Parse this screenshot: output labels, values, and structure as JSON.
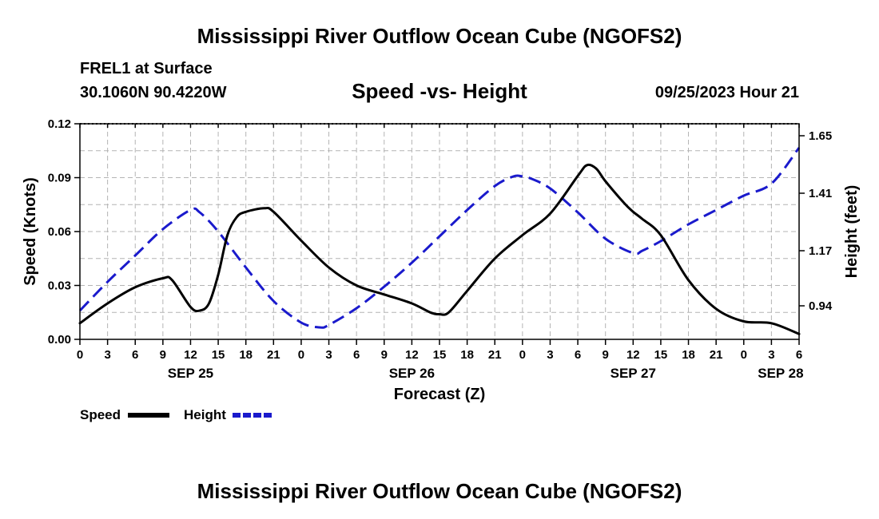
{
  "page": {
    "title": "Mississippi River Outflow Ocean Cube (NGOFS2)",
    "station": "FREL1 at Surface",
    "coords": "30.1060N  90.4220W",
    "datetime": "09/25/2023 Hour 21",
    "footer_title": "Mississippi River Outflow Ocean Cube (NGOFS2)"
  },
  "chart_data": {
    "type": "line",
    "title": "Speed -vs- Height",
    "xlabel": "Forecast (Z)",
    "ylabel_left": "Speed (Knots)",
    "ylabel_right": "Height (feet)",
    "x_range_hours": [
      0,
      78
    ],
    "y_left_range": [
      0,
      0.12
    ],
    "y_right_range": [
      0.8,
      1.7
    ],
    "grid": true,
    "x_tick_hours": [
      0,
      3,
      6,
      9,
      12,
      15,
      18,
      21,
      24,
      27,
      30,
      33,
      36,
      39,
      42,
      45,
      48,
      51,
      54,
      57,
      60,
      63,
      66,
      69,
      72,
      75,
      78
    ],
    "x_tick_labels": [
      "0",
      "3",
      "6",
      "9",
      "12",
      "15",
      "18",
      "21",
      "0",
      "3",
      "6",
      "9",
      "12",
      "15",
      "18",
      "21",
      "0",
      "3",
      "6",
      "9",
      "12",
      "15",
      "18",
      "21",
      "0",
      "3",
      "6"
    ],
    "date_labels": [
      {
        "label": "SEP 25",
        "hour": 12
      },
      {
        "label": "SEP 26",
        "hour": 36
      },
      {
        "label": "SEP 27",
        "hour": 60
      },
      {
        "label": "SEP 28",
        "hour": 76
      }
    ],
    "y_left_ticks": [
      {
        "value": 0,
        "label": "0.00"
      },
      {
        "value": 0.03,
        "label": "0.03"
      },
      {
        "value": 0.06,
        "label": "0.06"
      },
      {
        "value": 0.09,
        "label": "0.09"
      },
      {
        "value": 0.12,
        "label": "0.12"
      }
    ],
    "y_right_ticks": [
      {
        "value": 0.94,
        "label": "0.94"
      },
      {
        "value": 1.17,
        "label": "1.17"
      },
      {
        "value": 1.41,
        "label": "1.41"
      },
      {
        "value": 1.65,
        "label": "1.65"
      }
    ],
    "legend": {
      "placement": "bottom-left",
      "speed_label": "Speed",
      "height_label": "Height"
    },
    "series": [
      {
        "name": "Speed",
        "axis": "left",
        "color": "#000000",
        "style": "solid",
        "x": [
          0,
          3,
          6,
          9,
          10,
          12,
          13,
          14,
          15,
          16,
          17,
          18,
          20,
          21,
          24,
          27,
          30,
          33,
          36,
          38,
          39,
          40,
          42,
          45,
          48,
          51,
          54,
          55,
          56,
          57,
          59,
          60,
          61,
          63,
          66,
          69,
          72,
          75,
          78
        ],
        "y": [
          0.009,
          0.02,
          0.029,
          0.034,
          0.033,
          0.018,
          0.016,
          0.02,
          0.036,
          0.058,
          0.068,
          0.071,
          0.073,
          0.071,
          0.055,
          0.04,
          0.03,
          0.025,
          0.02,
          0.015,
          0.014,
          0.015,
          0.027,
          0.045,
          0.058,
          0.07,
          0.091,
          0.097,
          0.095,
          0.088,
          0.076,
          0.071,
          0.067,
          0.058,
          0.033,
          0.017,
          0.01,
          0.009,
          0.003
        ]
      },
      {
        "name": "Height",
        "axis": "right",
        "color": "#1a1acc",
        "style": "dashed",
        "x": [
          0,
          3,
          6,
          9,
          12,
          13,
          15,
          18,
          21,
          24,
          26,
          27,
          30,
          33,
          36,
          39,
          42,
          45,
          47,
          48,
          49,
          51,
          54,
          57,
          60,
          61,
          63,
          66,
          69,
          72,
          75,
          78
        ],
        "y": [
          0.92,
          1.04,
          1.15,
          1.26,
          1.34,
          1.33,
          1.25,
          1.1,
          0.96,
          0.87,
          0.85,
          0.86,
          0.93,
          1.02,
          1.12,
          1.23,
          1.34,
          1.44,
          1.48,
          1.48,
          1.47,
          1.43,
          1.33,
          1.22,
          1.16,
          1.17,
          1.21,
          1.28,
          1.34,
          1.4,
          1.45,
          1.6
        ]
      }
    ]
  }
}
